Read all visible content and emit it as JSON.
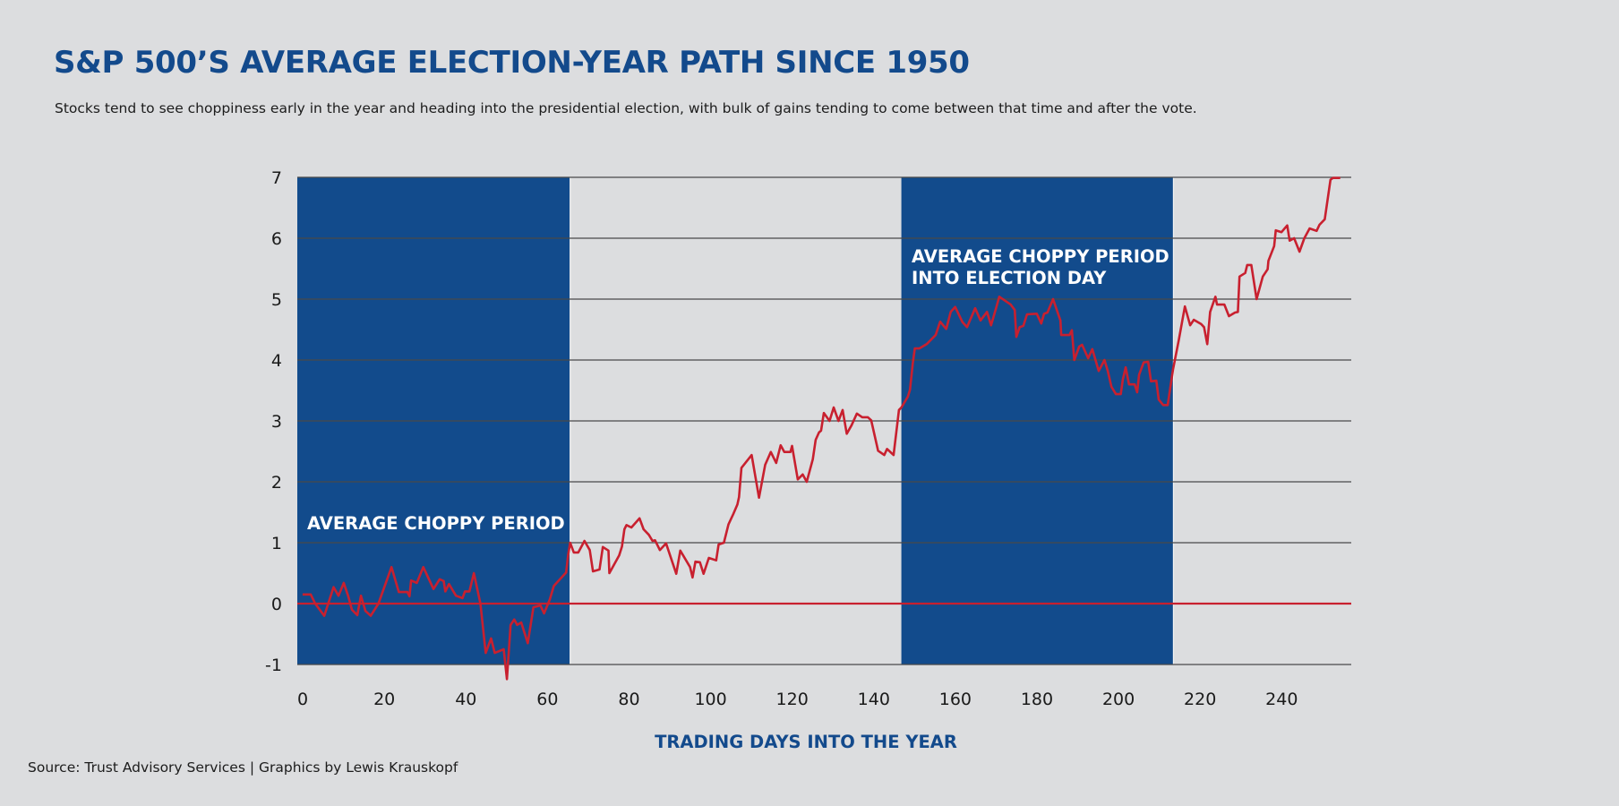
{
  "title": "S&P 500’S AVERAGE ELECTION-YEAR PATH SINCE 1950",
  "subtitle": "Stocks tend to see choppiness early in the year and heading into the presidential election, with bulk of gains tending to come between that time and after the vote.",
  "source": "Source: Trust Advisory Services | Graphics by Lewis Krauskopf",
  "colors": {
    "background": "#dcdddf",
    "band": "#124b8c",
    "line": "#c8202f",
    "title": "#134a8c",
    "grid": "#4a4a4a"
  },
  "chart_data": {
    "type": "line",
    "title": "S&P 500’S AVERAGE ELECTION-YEAR PATH SINCE 1950",
    "xlabel": "TRADING DAYS INTO THE YEAR",
    "ylabel": "",
    "xlim": [
      -0.9,
      257.5
    ],
    "ylim": [
      -1,
      7
    ],
    "x_ticks": [
      0,
      20,
      40,
      60,
      80,
      100,
      120,
      140,
      160,
      180,
      200,
      220,
      240
    ],
    "y_ticks": [
      -1,
      0,
      1,
      2,
      3,
      4,
      5,
      6,
      7
    ],
    "grid": "horizontal",
    "reference_line": {
      "y": 0,
      "color": "#c8202f"
    },
    "bands": [
      {
        "x_start": -0.9,
        "x_end": 65.9,
        "label": [
          "AVERAGE CHOPPY PERIOD"
        ]
      },
      {
        "x_start": 147.2,
        "x_end": 213.8,
        "label": [
          "AVERAGE CHOPPY PERIOD",
          "INTO ELECTION DAY"
        ]
      }
    ],
    "series": [
      {
        "name": "S&P 500 average election-year path (%)",
        "color": "#c8202f",
        "x": [
          0.4,
          2.4,
          3.5,
          5.7,
          8,
          9.2,
          10.5,
          11.6,
          12.5,
          13.8,
          14.7,
          15.8,
          17.1,
          19,
          22.2,
          24,
          26.1,
          26.6,
          27,
          28.4,
          30,
          32.5,
          34,
          35,
          35.4,
          36.3,
          38,
          39.6,
          40.2,
          41.3,
          42.4,
          44,
          45.3,
          46.6,
          47.5,
          49.7,
          50.5,
          51.4,
          52.3,
          53,
          54,
          55.6,
          57,
          58.7,
          59.6,
          61,
          62,
          65,
          65.5,
          66,
          66.9,
          68,
          69.5,
          70.8,
          71.6,
          73.2,
          74,
          75.4,
          75.6,
          78,
          78.7,
          79.3,
          79.8,
          81,
          83,
          84,
          85.3,
          86.2,
          86.8,
          88,
          89.5,
          92,
          93,
          95.4,
          96,
          96.7,
          97.8,
          98.7,
          100,
          101.8,
          102.4,
          103.7,
          104.8,
          106,
          107,
          107.4,
          108,
          110.5,
          112.3,
          113.8,
          115.2,
          116.5,
          117.6,
          118.5,
          120,
          120.4,
          121.8,
          123,
          124,
          125.5,
          126.2,
          127,
          127.5,
          128.2,
          129.6,
          130.6,
          131.8,
          132.8,
          133.8,
          135,
          136.3,
          137.6,
          139,
          139.8,
          141.5,
          143,
          143.7,
          145.3,
          146.6,
          147.2,
          148.8,
          149.3,
          150,
          150.5,
          151.6,
          153.4,
          155.6,
          156.7,
          158.2,
          159.3,
          160.4,
          162.2,
          163.3,
          165.3,
          166.6,
          168.2,
          169.2,
          170.5,
          171.2,
          174,
          175,
          175.4,
          176.2,
          177.1,
          178,
          180.4,
          181.5,
          182.2,
          183,
          184.4,
          186.2,
          186.4,
          188.4,
          189,
          189.6,
          190.8,
          191.5,
          193,
          194,
          195.6,
          197,
          197.8,
          198.7,
          199.8,
          201,
          201.5,
          202.2,
          203,
          204.4,
          205,
          205.5,
          206.6,
          207.7,
          208.4,
          209.7,
          210.3,
          211.4,
          212.5,
          213.8,
          215.2,
          216.7,
          218,
          218.9,
          220.7,
          221.4,
          222.2,
          222.9,
          224.2,
          224.6,
          226.4,
          227.5,
          229,
          229.7,
          230.1,
          231.5,
          232,
          233,
          234.3,
          235.8,
          237,
          237.2,
          238.6,
          239,
          240.4,
          241.8,
          242.4,
          243.5,
          244.8,
          246,
          247.3,
          249,
          249.7,
          251,
          252.4,
          253,
          254.8
        ],
        "y": [
          0.15,
          0.15,
          0,
          -0.2,
          0.27,
          0.13,
          0.34,
          0.12,
          -0.1,
          -0.19,
          0.13,
          -0.12,
          -0.2,
          0,
          0.6,
          0.19,
          0.19,
          0.12,
          0.38,
          0.34,
          0.6,
          0.24,
          0.4,
          0.37,
          0.2,
          0.32,
          0.13,
          0.09,
          0.2,
          0.2,
          0.5,
          0,
          -0.81,
          -0.57,
          -0.81,
          -0.75,
          -1.24,
          -0.35,
          -0.26,
          -0.35,
          -0.31,
          -0.65,
          -0.06,
          -0.03,
          -0.16,
          0.07,
          0.29,
          0.51,
          0.79,
          1.0,
          0.84,
          0.84,
          1.03,
          0.88,
          0.53,
          0.56,
          0.93,
          0.87,
          0.5,
          0.79,
          0.94,
          1.22,
          1.29,
          1.25,
          1.4,
          1.22,
          1.13,
          1.03,
          1.04,
          0.88,
          0.99,
          0.49,
          0.87,
          0.6,
          0.43,
          0.69,
          0.68,
          0.49,
          0.75,
          0.71,
          0.97,
          1.0,
          1.3,
          1.47,
          1.63,
          1.75,
          2.23,
          2.44,
          1.74,
          2.28,
          2.49,
          2.31,
          2.6,
          2.49,
          2.49,
          2.59,
          2.04,
          2.12,
          2.0,
          2.37,
          2.69,
          2.81,
          2.84,
          3.13,
          3.0,
          3.22,
          3.0,
          3.18,
          2.79,
          2.93,
          3.12,
          3.06,
          3.06,
          3.01,
          2.51,
          2.44,
          2.54,
          2.44,
          3.18,
          3.22,
          3.4,
          3.51,
          3.94,
          4.19,
          4.19,
          4.26,
          4.41,
          4.63,
          4.51,
          4.79,
          4.87,
          4.62,
          4.54,
          4.85,
          4.65,
          4.79,
          4.57,
          4.87,
          5.04,
          4.91,
          4.82,
          4.38,
          4.54,
          4.56,
          4.75,
          4.76,
          4.6,
          4.76,
          4.78,
          5.0,
          4.65,
          4.41,
          4.41,
          4.49,
          4.0,
          4.22,
          4.25,
          4.03,
          4.18,
          3.82,
          4.0,
          3.82,
          3.56,
          3.44,
          3.44,
          3.68,
          3.88,
          3.6,
          3.6,
          3.47,
          3.76,
          3.96,
          3.97,
          3.65,
          3.66,
          3.35,
          3.26,
          3.26,
          3.84,
          4.32,
          4.88,
          4.57,
          4.66,
          4.59,
          4.54,
          4.26,
          4.79,
          5.04,
          4.91,
          4.91,
          4.72,
          4.78,
          4.79,
          5.37,
          5.43,
          5.56,
          5.56,
          5.0,
          5.37,
          5.49,
          5.63,
          5.87,
          6.13,
          6.1,
          6.21,
          5.96,
          6.0,
          5.78,
          6.0,
          6.16,
          6.12,
          6.22,
          6.31,
          6.96,
          6.99,
          6.99
        ]
      }
    ]
  }
}
